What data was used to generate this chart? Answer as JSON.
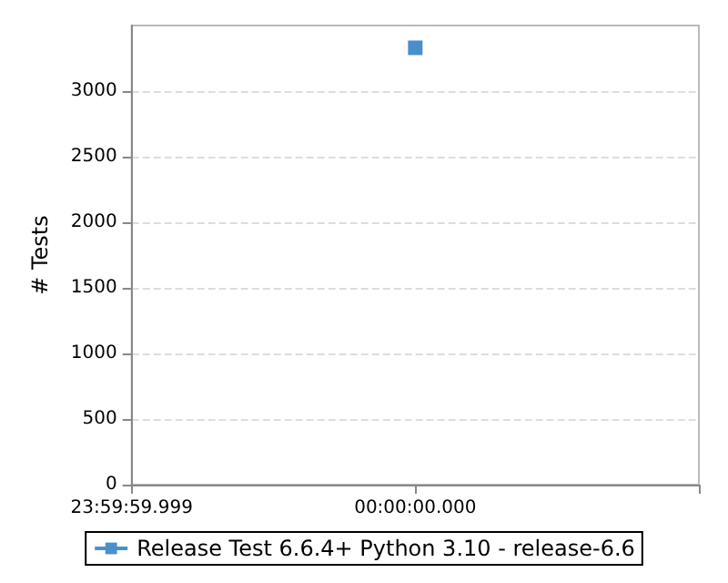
{
  "chart_data": {
    "type": "line",
    "ylabel": "# Tests",
    "categories": [
      "23:59:59.999",
      "00:00:00.000",
      null
    ],
    "series": [
      {
        "name": "Release Test 6.6.4+ Python 3.10 - release-6.6",
        "color": "#4a8fcc",
        "values": [
          null,
          3330,
          null
        ]
      }
    ],
    "ylim": [
      0,
      3500
    ],
    "yticks": [
      0,
      500,
      1000,
      1500,
      2000,
      2500,
      3000
    ],
    "grid": "y",
    "legend": "bottom",
    "marker": "square"
  }
}
